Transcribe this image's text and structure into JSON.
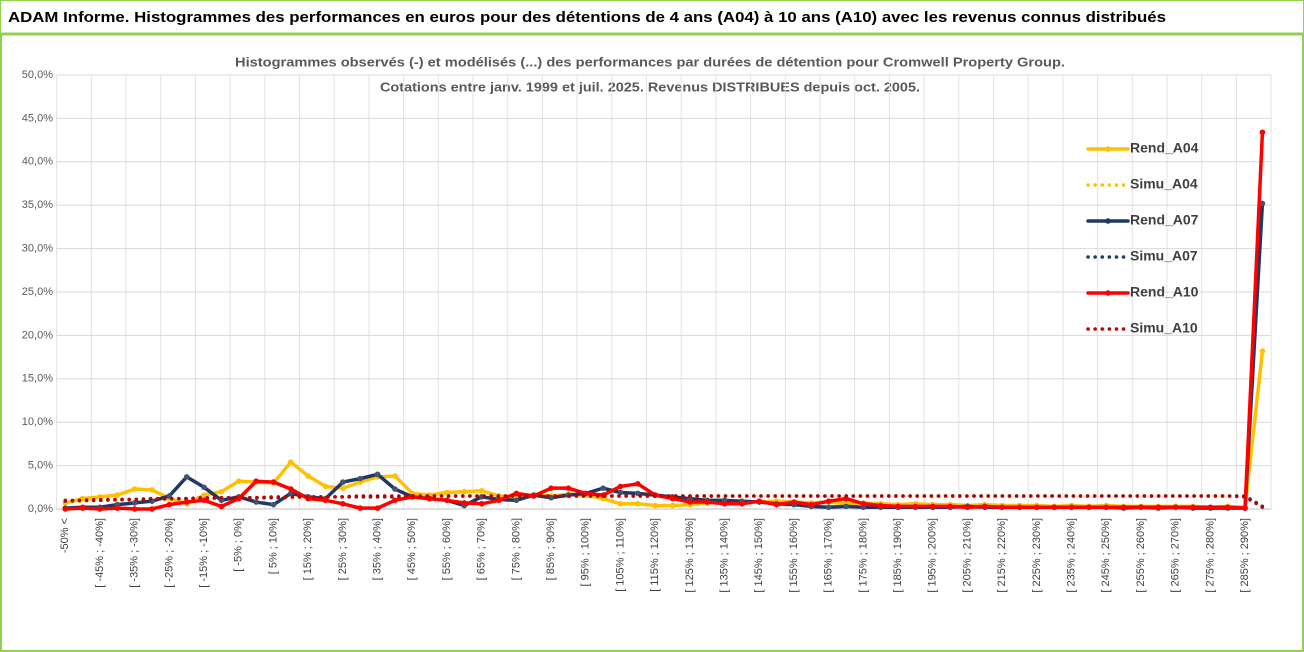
{
  "header": {
    "title": "ADAM Informe. Histogrammes des performances en euros pour des détentions de 4 ans (A04) à 10 ans (A10) avec les revenus connus distribués"
  },
  "chart_data": {
    "type": "line",
    "title": [
      "Histogrammes observés (-)  et modélisés (...) des performances par durées de détention pour Cromwell Property Group.",
      "Cotations entre janv. 1999 et juil. 2025. Revenus DISTRIBUES depuis oct. 2005."
    ],
    "categories": [
      "-50% <",
      null,
      "[ -45% ; -40%]",
      null,
      "[ -35% ; -30%]",
      null,
      "[ -25% ; -20%]",
      null,
      "[ -15% ; -10%]",
      null,
      "[ -5% ; 0%]",
      null,
      "[ 5% ; 10%]",
      null,
      "[ 15% ; 20%]",
      null,
      "[ 25% ; 30%]",
      null,
      "[ 35% ; 40%]",
      null,
      "[ 45% ; 50%]",
      null,
      "[ 55% ; 60%]",
      null,
      "[ 65% ; 70%]",
      null,
      "[ 75% ; 80%]",
      null,
      "[ 85% ; 90%]",
      null,
      "[ 95% ; 100%]",
      null,
      "[ 105% ; 110%]",
      null,
      "[ 115% ; 120%]",
      null,
      "[ 125% ; 130%]",
      null,
      "[ 135% ; 140%]",
      null,
      "[ 145% ; 150%]",
      null,
      "[ 155% ; 160%]",
      null,
      "[ 165% ; 170%]",
      null,
      "[ 175% ; 180%]",
      null,
      "[ 185% ; 190%]",
      null,
      "[ 195% ; 200%]",
      null,
      "[ 205% ; 210%]",
      null,
      "[ 215% ; 220%]",
      null,
      "[ 225% ; 230%]",
      null,
      "[ 235% ; 240%]",
      null,
      "[ 245% ; 250%]",
      null,
      "[ 255% ; 260%]",
      null,
      "[ 265% ; 270%]",
      null,
      "[ 275% ; 280%]",
      null,
      "[ 285% ; 290%]",
      null
    ],
    "series": [
      {
        "name": "Rend_A04",
        "color": "#ffc000",
        "style": "solid",
        "markers": true,
        "values": [
          0.7,
          1.2,
          1.4,
          1.6,
          2.3,
          2.2,
          1.2,
          0.6,
          1.6,
          2.0,
          3.2,
          3.1,
          3.0,
          5.4,
          3.8,
          2.6,
          2.4,
          3.1,
          3.7,
          3.8,
          1.8,
          1.6,
          1.9,
          2.0,
          2.1,
          1.5,
          1.4,
          1.6,
          1.5,
          1.7,
          1.6,
          1.2,
          0.6,
          0.6,
          0.4,
          0.4,
          0.5,
          0.7,
          0.8,
          0.9,
          0.8,
          0.9,
          0.8,
          0.7,
          0.8,
          0.6,
          0.7,
          0.6,
          0.5,
          0.6,
          0.5,
          0.5,
          0.4,
          0.5,
          0.4,
          0.4,
          0.4,
          0.3,
          0.4,
          0.3,
          0.4,
          0.3,
          0.3,
          0.3,
          0.3,
          0.3,
          0.2,
          0.3,
          0.2,
          18.2
        ]
      },
      {
        "name": "Simu_A04",
        "color": "#ffc000",
        "style": "dotted",
        "markers": false,
        "values": [
          0.8,
          0.9,
          1.0,
          1.0,
          1.1,
          1.1,
          1.1,
          1.2,
          1.2,
          1.2,
          1.3,
          1.3,
          1.3,
          1.3,
          1.4,
          1.4,
          1.4,
          1.4,
          1.4,
          1.4,
          1.5,
          1.5,
          1.5,
          1.5,
          1.5,
          1.5,
          1.5,
          1.5,
          1.5,
          1.5,
          1.5,
          1.5,
          1.5,
          1.5,
          1.5,
          1.5,
          1.5,
          1.5,
          1.5,
          1.5,
          1.5,
          1.5,
          1.5,
          1.5,
          1.5,
          1.5,
          1.5,
          1.5,
          1.5,
          1.5,
          1.5,
          1.5,
          1.5,
          1.5,
          1.5,
          1.5,
          1.5,
          1.5,
          1.5,
          1.5,
          1.5,
          1.5,
          1.5,
          1.5,
          1.5,
          1.5,
          1.5,
          1.5,
          1.5,
          0.3
        ]
      },
      {
        "name": "Rend_A07",
        "color": "#1f3864",
        "style": "solid",
        "markers": true,
        "values": [
          0.1,
          0.2,
          0.2,
          0.5,
          0.7,
          0.9,
          1.5,
          3.7,
          2.5,
          1.0,
          1.4,
          0.8,
          0.5,
          1.8,
          1.4,
          1.2,
          3.1,
          3.5,
          4.0,
          2.3,
          1.4,
          1.2,
          1.0,
          0.4,
          1.4,
          1.1,
          1.0,
          1.6,
          1.3,
          1.6,
          1.8,
          2.4,
          1.9,
          1.8,
          1.6,
          1.4,
          1.2,
          1.0,
          1.0,
          0.9,
          0.8,
          0.6,
          0.5,
          0.3,
          0.2,
          0.3,
          0.2,
          0.2,
          0.2,
          0.2,
          0.2,
          0.2,
          0.3,
          0.2,
          0.2,
          0.2,
          0.2,
          0.2,
          0.2,
          0.2,
          0.2,
          0.1,
          0.2,
          0.1,
          0.2,
          0.1,
          0.1,
          0.1,
          0.1,
          35.2
        ]
      },
      {
        "name": "Simu_A07",
        "color": "#1f3864",
        "style": "dotted",
        "markers": false,
        "values": [
          0.9,
          1.0,
          1.0,
          1.1,
          1.1,
          1.1,
          1.2,
          1.2,
          1.2,
          1.3,
          1.3,
          1.3,
          1.3,
          1.4,
          1.4,
          1.4,
          1.4,
          1.4,
          1.4,
          1.4,
          1.5,
          1.5,
          1.5,
          1.5,
          1.5,
          1.5,
          1.5,
          1.5,
          1.5,
          1.5,
          1.5,
          1.5,
          1.5,
          1.5,
          1.5,
          1.5,
          1.5,
          1.5,
          1.5,
          1.5,
          1.5,
          1.5,
          1.5,
          1.5,
          1.5,
          1.5,
          1.5,
          1.5,
          1.5,
          1.5,
          1.5,
          1.5,
          1.5,
          1.5,
          1.5,
          1.5,
          1.5,
          1.5,
          1.5,
          1.5,
          1.5,
          1.5,
          1.5,
          1.5,
          1.5,
          1.5,
          1.5,
          1.5,
          1.5,
          0.3
        ]
      },
      {
        "name": "Rend_A10",
        "color": "#ff0000",
        "style": "solid",
        "markers": true,
        "values": [
          0.0,
          0.1,
          0.0,
          0.1,
          0.0,
          0.0,
          0.5,
          0.8,
          1.0,
          0.3,
          1.2,
          3.2,
          3.1,
          2.3,
          1.2,
          1.0,
          0.6,
          0.1,
          0.1,
          1.0,
          1.4,
          1.2,
          1.0,
          0.7,
          0.6,
          1.0,
          1.8,
          1.5,
          2.4,
          2.4,
          1.8,
          1.6,
          2.6,
          2.9,
          1.6,
          1.2,
          0.8,
          0.8,
          0.6,
          0.6,
          0.9,
          0.5,
          0.8,
          0.5,
          0.9,
          1.2,
          0.6,
          0.4,
          0.3,
          0.3,
          0.3,
          0.3,
          0.2,
          0.3,
          0.2,
          0.2,
          0.2,
          0.2,
          0.2,
          0.2,
          0.2,
          0.2,
          0.2,
          0.2,
          0.2,
          0.2,
          0.2,
          0.2,
          0.1,
          43.4
        ]
      },
      {
        "name": "Simu_A10",
        "color": "#c00000",
        "style": "dotted",
        "markers": false,
        "values": [
          1.0,
          1.0,
          1.1,
          1.1,
          1.1,
          1.2,
          1.2,
          1.2,
          1.3,
          1.3,
          1.3,
          1.3,
          1.4,
          1.4,
          1.4,
          1.4,
          1.4,
          1.5,
          1.5,
          1.5,
          1.5,
          1.5,
          1.5,
          1.5,
          1.5,
          1.5,
          1.5,
          1.5,
          1.5,
          1.5,
          1.5,
          1.5,
          1.5,
          1.5,
          1.5,
          1.5,
          1.5,
          1.5,
          1.5,
          1.5,
          1.5,
          1.5,
          1.5,
          1.5,
          1.5,
          1.5,
          1.5,
          1.5,
          1.5,
          1.5,
          1.5,
          1.5,
          1.5,
          1.5,
          1.5,
          1.5,
          1.5,
          1.5,
          1.5,
          1.5,
          1.5,
          1.5,
          1.5,
          1.5,
          1.5,
          1.5,
          1.5,
          1.5,
          1.4,
          0.2
        ]
      }
    ],
    "ylim": [
      0,
      50
    ],
    "yticks": [
      {
        "value": 0,
        "label": "0,0%"
      },
      {
        "value": 5,
        "label": "5,0%"
      },
      {
        "value": 10,
        "label": "10,0%"
      },
      {
        "value": 15,
        "label": "15,0%"
      },
      {
        "value": 20,
        "label": "20,0%"
      },
      {
        "value": 25,
        "label": "25,0%"
      },
      {
        "value": 30,
        "label": "30,0%"
      },
      {
        "value": 35,
        "label": "35,0%"
      },
      {
        "value": 40,
        "label": "40,0%"
      },
      {
        "value": 45,
        "label": "45,0%"
      },
      {
        "value": 50,
        "label": "50,0%"
      }
    ],
    "grid": true,
    "legend": "upper right"
  }
}
